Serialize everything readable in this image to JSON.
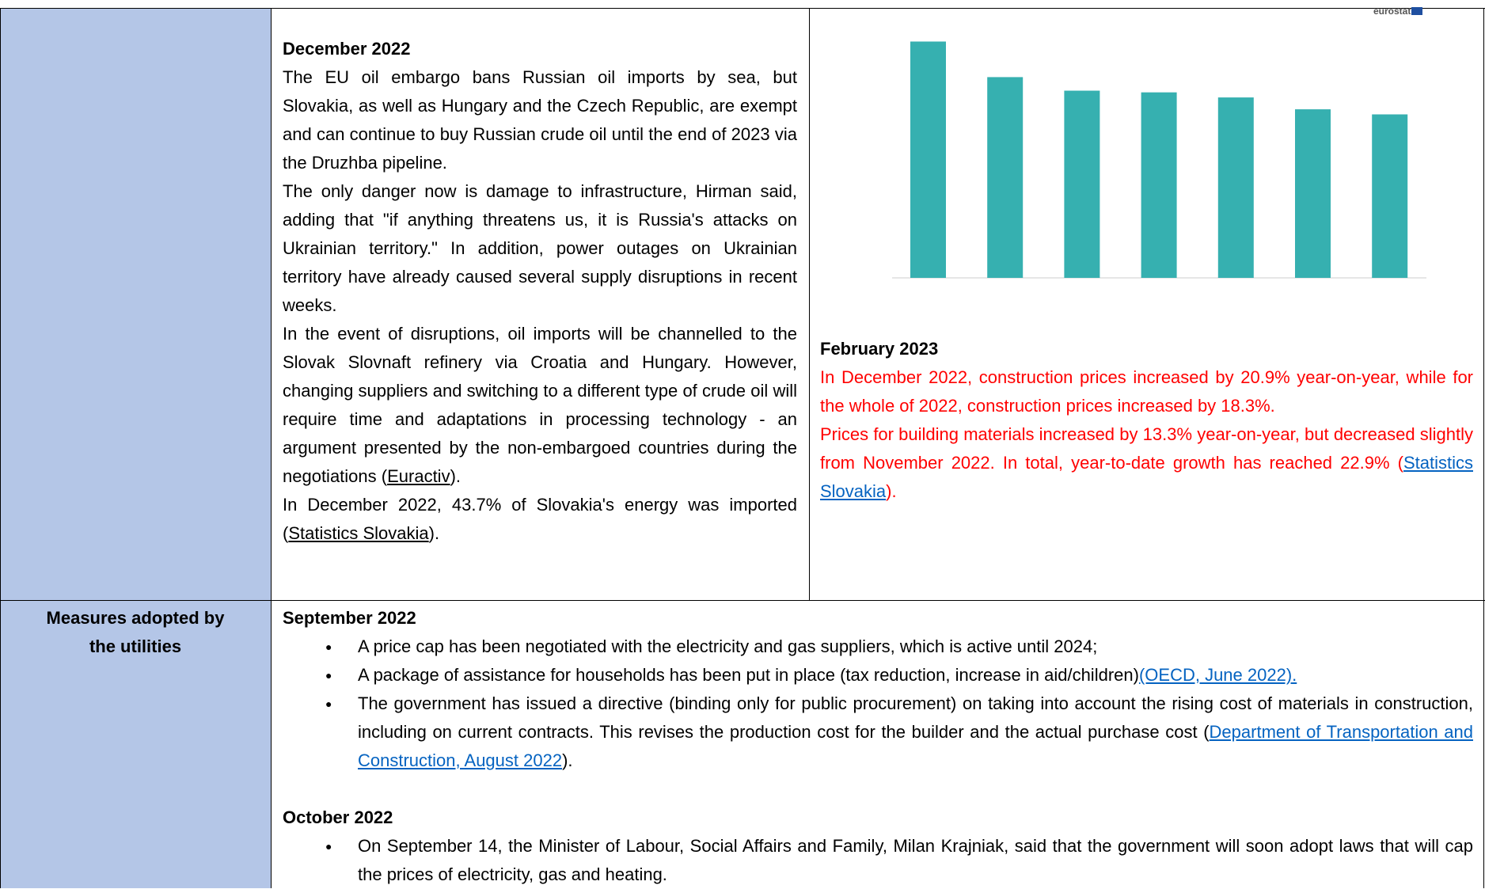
{
  "row1": {
    "middle": {
      "heading": "December 2022",
      "paragraphs": [
        {
          "before": "The EU oil embargo bans Russian oil imports by sea, but Slovakia, as well as Hungary and the Czech Republic, are exempt and can continue to buy Russian crude oil until the end of 2023 via the Druzhba pipeline."
        },
        {
          "before": "The only danger now is damage to infrastructure, Hirman said, adding that \"if anything threatens us, it is Russia's attacks on Ukrainian territory.\" In addition, power outages on Ukrainian territory have already caused several supply disruptions in recent weeks."
        },
        {
          "before": "In the event of disruptions, oil imports will be channelled to the Slovak Slovnaft refinery via Croatia and Hungary. However, changing suppliers and switching to a different type of crude oil will require time and adaptations in processing technology - an argument presented by the non-embargoed countries during the negotiations (",
          "link": "Euractiv",
          "after": ")."
        },
        {
          "before": "In December 2022, 43.7% of Slovakia's energy was imported (",
          "link": "Statistics Slovakia",
          "after": ")."
        }
      ]
    },
    "right": {
      "chart": {
        "type": "bar",
        "brand": "eurostat",
        "values": [
          279,
          237,
          221,
          219,
          213,
          199,
          193
        ],
        "color": "#36b0b0",
        "ylim": [
          0,
          300
        ]
      },
      "heading": "February 2023",
      "paragraphs": [
        {
          "before": "In December 2022, construction prices increased by 20.9% year-on-year, while for the whole of 2022, construction prices increased by 18.3%."
        },
        {
          "before": "Prices for building materials increased by 13.3% year-on-year, but decreased slightly from November 2022. In total, year-to-date growth has reached 22.9% (",
          "link": "Statistics Slovakia",
          "after": ")."
        }
      ]
    }
  },
  "row2": {
    "label": "Measures adopted by the utilities",
    "sections": [
      {
        "heading": "September 2022",
        "bullets": [
          {
            "before": "A price cap has been negotiated with the electricity and gas suppliers, which is active until 2024;"
          },
          {
            "before": "A package of assistance for households has been put in place (tax reduction, increase in aid/children)",
            "link": "(OECD, June 2022)."
          },
          {
            "before": "The government has issued a directive (binding only for public procurement) on taking into account the rising cost of materials in construction, including on current contracts. This revises the production cost for the builder and the actual purchase cost (",
            "link": "Department of Transportation and Construction, August 2022",
            "after": ")."
          }
        ]
      },
      {
        "heading": "October 2022",
        "bullets": [
          {
            "before": "On September 14, the Minister of Labour, Social Affairs and Family, Milan Krajniak, said that the government will soon adopt laws that will cap the prices of electricity, gas and heating."
          }
        ]
      }
    ]
  }
}
